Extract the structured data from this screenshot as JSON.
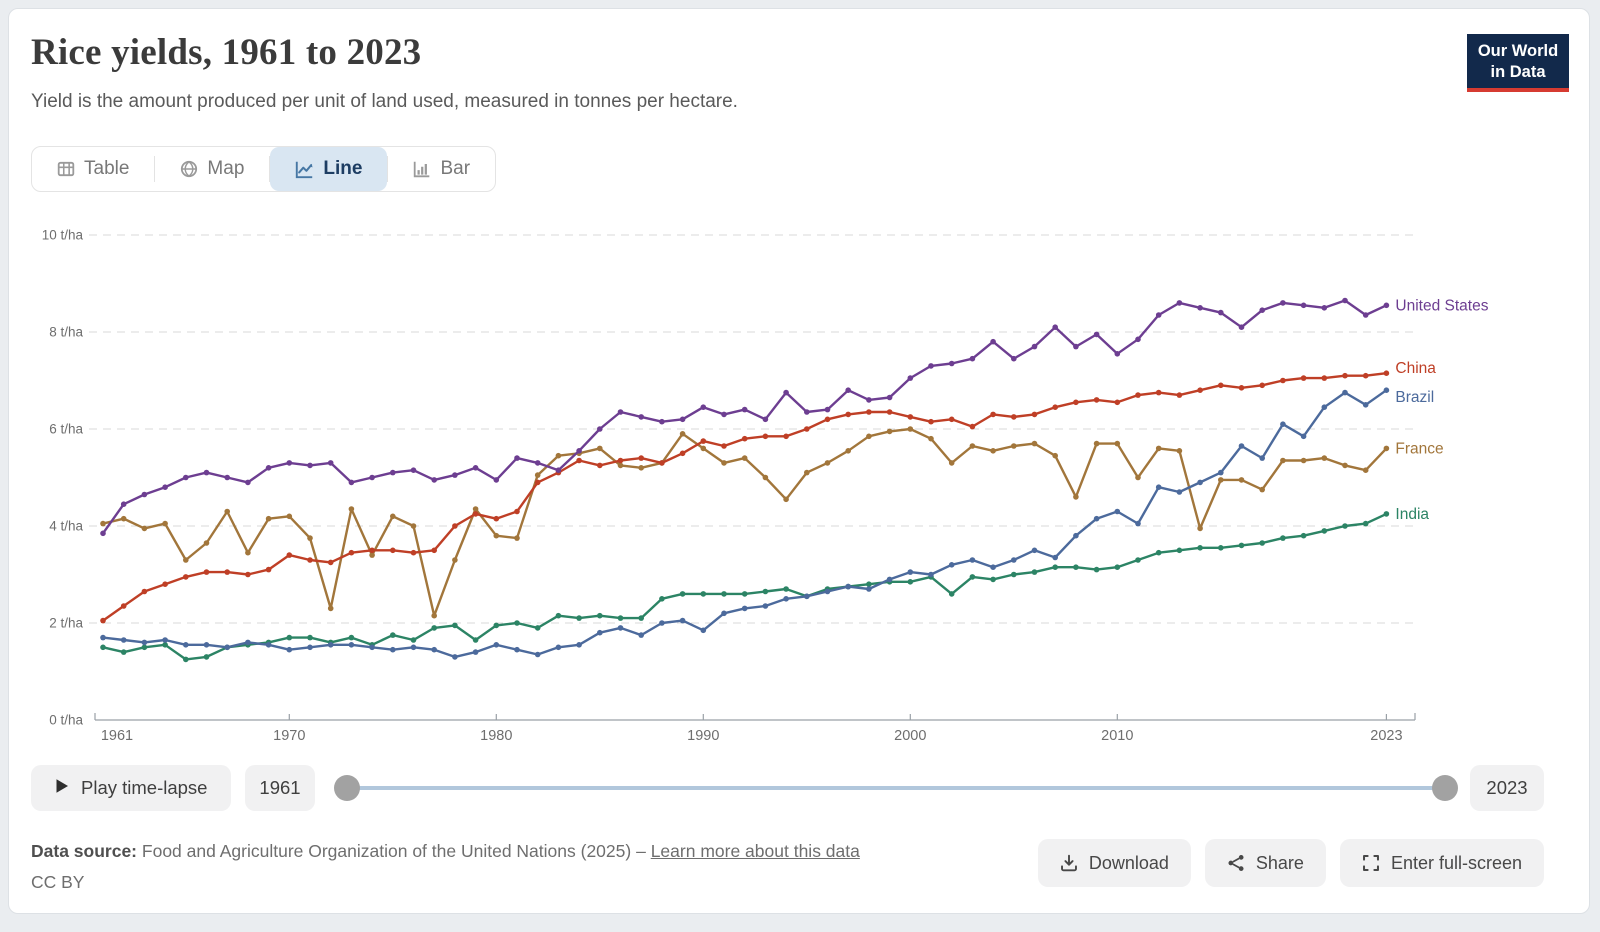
{
  "page": {
    "title": "Rice yields, 1961 to 2023",
    "subtitle": "Yield is the amount produced per unit of land used, measured in tonnes per hectare."
  },
  "logo": {
    "line1": "Our World",
    "line2": "in Data",
    "bg_color": "#12294b",
    "accent_color": "#d63b31"
  },
  "tabs": [
    {
      "label": "Table",
      "icon": "table-icon",
      "active": false
    },
    {
      "label": "Map",
      "icon": "globe-icon",
      "active": false
    },
    {
      "label": "Line",
      "icon": "line-chart-icon",
      "active": true
    },
    {
      "label": "Bar",
      "icon": "bar-chart-icon",
      "active": false
    }
  ],
  "chart_data": {
    "type": "line",
    "title": "Rice yields, 1961 to 2023",
    "xlabel": "",
    "ylabel": "tonnes per hectare",
    "unit_suffix": " t/ha",
    "ylim": [
      0,
      10
    ],
    "grid": "dashed-horizontal",
    "legend_position": "end-of-line-labels",
    "y_ticks": [
      {
        "value": 0,
        "label": "0 t/ha"
      },
      {
        "value": 2,
        "label": "2 t/ha"
      },
      {
        "value": 4,
        "label": "4 t/ha"
      },
      {
        "value": 6,
        "label": "6 t/ha"
      },
      {
        "value": 8,
        "label": "8 t/ha"
      },
      {
        "value": 10,
        "label": "10 t/ha"
      }
    ],
    "x_ticks": [
      1961,
      1970,
      1980,
      1990,
      2000,
      2010,
      2023
    ],
    "years": [
      1961,
      1962,
      1963,
      1964,
      1965,
      1966,
      1967,
      1968,
      1969,
      1970,
      1971,
      1972,
      1973,
      1974,
      1975,
      1976,
      1977,
      1978,
      1979,
      1980,
      1981,
      1982,
      1983,
      1984,
      1985,
      1986,
      1987,
      1988,
      1989,
      1990,
      1991,
      1992,
      1993,
      1994,
      1995,
      1996,
      1997,
      1998,
      1999,
      2000,
      2001,
      2002,
      2003,
      2004,
      2005,
      2006,
      2007,
      2008,
      2009,
      2010,
      2011,
      2012,
      2013,
      2014,
      2015,
      2016,
      2017,
      2018,
      2019,
      2020,
      2021,
      2022,
      2023
    ],
    "series": [
      {
        "name": "United States",
        "color": "#6d3e91",
        "values": [
          3.85,
          4.45,
          4.65,
          4.8,
          5.0,
          5.1,
          5.0,
          4.9,
          5.2,
          5.3,
          5.25,
          5.3,
          4.9,
          5.0,
          5.1,
          5.15,
          4.95,
          5.05,
          5.2,
          4.95,
          5.4,
          5.3,
          5.15,
          5.55,
          6.0,
          6.35,
          6.25,
          6.15,
          6.2,
          6.45,
          6.3,
          6.4,
          6.2,
          6.75,
          6.35,
          6.4,
          6.8,
          6.6,
          6.65,
          7.05,
          7.3,
          7.35,
          7.45,
          7.8,
          7.45,
          7.7,
          8.1,
          7.7,
          7.95,
          7.55,
          7.85,
          8.35,
          8.6,
          8.5,
          8.4,
          8.1,
          8.45,
          8.6,
          8.55,
          8.5,
          8.65,
          8.35,
          8.55
        ]
      },
      {
        "name": "China",
        "color": "#bf3f26",
        "values": [
          2.05,
          2.35,
          2.65,
          2.8,
          2.95,
          3.05,
          3.05,
          3.0,
          3.1,
          3.4,
          3.3,
          3.25,
          3.45,
          3.5,
          3.5,
          3.45,
          3.5,
          4.0,
          4.25,
          4.15,
          4.3,
          4.9,
          5.1,
          5.35,
          5.25,
          5.35,
          5.4,
          5.3,
          5.5,
          5.75,
          5.65,
          5.8,
          5.85,
          5.85,
          6.0,
          6.2,
          6.3,
          6.35,
          6.35,
          6.25,
          6.15,
          6.2,
          6.05,
          6.3,
          6.25,
          6.3,
          6.45,
          6.55,
          6.6,
          6.55,
          6.7,
          6.75,
          6.7,
          6.8,
          6.9,
          6.85,
          6.9,
          7.0,
          7.05,
          7.05,
          7.1,
          7.1,
          7.15
        ]
      },
      {
        "name": "Brazil",
        "color": "#4c6a9c",
        "values": [
          1.7,
          1.65,
          1.6,
          1.65,
          1.55,
          1.55,
          1.5,
          1.6,
          1.55,
          1.45,
          1.5,
          1.55,
          1.55,
          1.5,
          1.45,
          1.5,
          1.45,
          1.3,
          1.4,
          1.55,
          1.45,
          1.35,
          1.5,
          1.55,
          1.8,
          1.9,
          1.75,
          2.0,
          2.05,
          1.85,
          2.2,
          2.3,
          2.35,
          2.5,
          2.55,
          2.65,
          2.75,
          2.7,
          2.9,
          3.05,
          3.0,
          3.2,
          3.3,
          3.15,
          3.3,
          3.5,
          3.35,
          3.8,
          4.15,
          4.3,
          4.05,
          4.8,
          4.7,
          4.9,
          5.1,
          5.65,
          5.4,
          6.1,
          5.85,
          6.45,
          6.75,
          6.5,
          6.8
        ]
      },
      {
        "name": "France",
        "color": "#a2763b",
        "values": [
          4.05,
          4.15,
          3.95,
          4.05,
          3.3,
          3.65,
          4.3,
          3.45,
          4.15,
          4.2,
          3.75,
          2.3,
          4.35,
          3.4,
          4.2,
          4.0,
          2.15,
          3.3,
          4.35,
          3.8,
          3.75,
          5.05,
          5.45,
          5.5,
          5.6,
          5.25,
          5.2,
          5.3,
          5.9,
          5.6,
          5.3,
          5.4,
          5.0,
          4.55,
          5.1,
          5.3,
          5.55,
          5.85,
          5.95,
          6.0,
          5.8,
          5.3,
          5.65,
          5.55,
          5.65,
          5.7,
          5.45,
          4.6,
          5.7,
          5.7,
          5.0,
          5.6,
          5.55,
          3.95,
          4.95,
          4.95,
          4.75,
          5.35,
          5.35,
          5.4,
          5.25,
          5.15,
          5.6
        ]
      },
      {
        "name": "India",
        "color": "#2c8465",
        "values": [
          1.5,
          1.4,
          1.5,
          1.55,
          1.25,
          1.3,
          1.5,
          1.55,
          1.6,
          1.7,
          1.7,
          1.6,
          1.7,
          1.55,
          1.75,
          1.65,
          1.9,
          1.95,
          1.65,
          1.95,
          2.0,
          1.9,
          2.15,
          2.1,
          2.15,
          2.1,
          2.1,
          2.5,
          2.6,
          2.6,
          2.6,
          2.6,
          2.65,
          2.7,
          2.55,
          2.7,
          2.75,
          2.8,
          2.85,
          2.85,
          2.95,
          2.6,
          2.95,
          2.9,
          3.0,
          3.05,
          3.15,
          3.15,
          3.1,
          3.15,
          3.3,
          3.45,
          3.5,
          3.55,
          3.55,
          3.6,
          3.65,
          3.75,
          3.8,
          3.9,
          4.0,
          4.05,
          4.25
        ]
      }
    ]
  },
  "timeline": {
    "play_label": "Play time-lapse",
    "start_year": "1961",
    "end_year": "2023"
  },
  "footer": {
    "source_label": "Data source:",
    "source": "Food and Agriculture Organization of the United Nations (2025)",
    "separator": "–",
    "link": "Learn more about this data",
    "license": "CC BY"
  },
  "actions": [
    {
      "label": "Download",
      "icon": "download-icon"
    },
    {
      "label": "Share",
      "icon": "share-icon"
    },
    {
      "label": "Enter full-screen",
      "icon": "fullscreen-icon"
    }
  ]
}
